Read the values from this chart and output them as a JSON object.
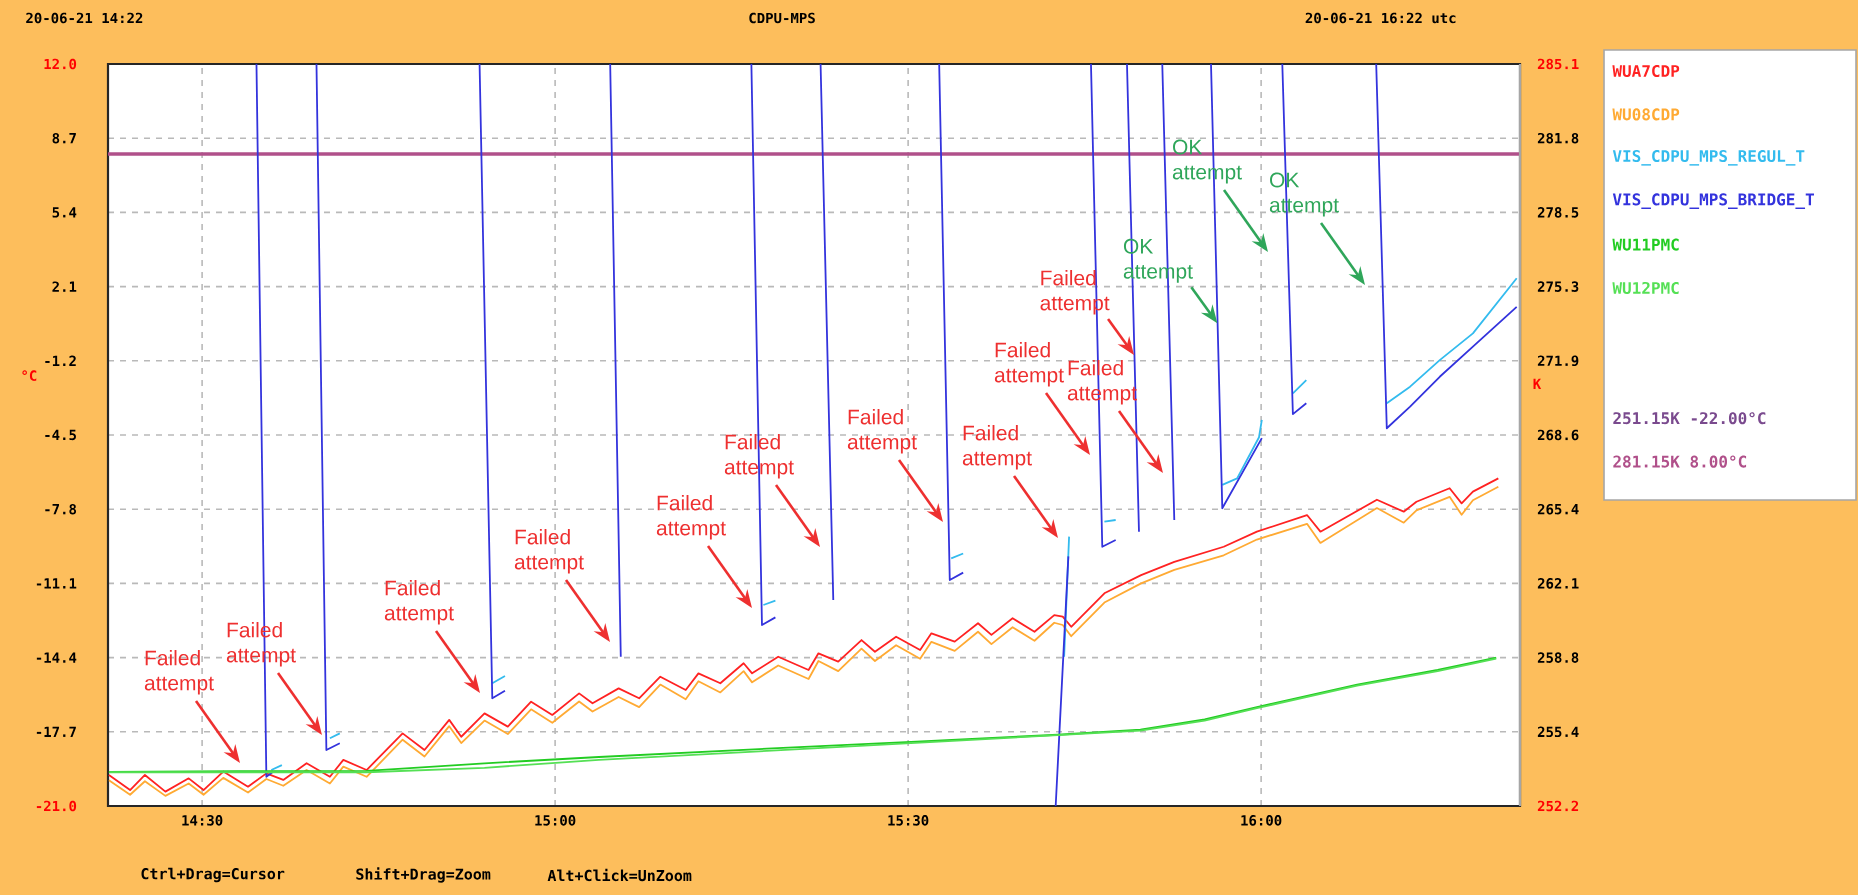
{
  "chart_data": {
    "type": "line",
    "title": "CDPU-MPS",
    "ylabel": "°C",
    "y2label": "K",
    "xlim": [
      14.3667,
      16.3667
    ],
    "xticks": [
      {
        "value": 14.5,
        "label": "14:30"
      },
      {
        "value": 15,
        "label": "15:00"
      },
      {
        "value": 15.5,
        "label": "15:30"
      },
      {
        "value": 16,
        "label": "16:00"
      }
    ],
    "ylim": [
      -21,
      12
    ],
    "yticks": [
      {
        "value": 12,
        "label": "12.0"
      },
      8.7,
      5.4,
      2.1,
      -1.2,
      -4.5,
      -7.8,
      -11.1,
      -14.4,
      -17.7,
      {
        "value": -21,
        "label": "-21.0"
      }
    ],
    "y2lim": [
      252.15,
      285.15
    ],
    "y2ticks": [
      {
        "value": 285.15,
        "label": "285.1"
      },
      {
        "value": 281.85,
        "label": "281.8"
      },
      {
        "value": 278.55,
        "label": "278.5"
      },
      {
        "value": 275.25,
        "label": "275.3"
      },
      {
        "value": 271.95,
        "label": "271.9"
      },
      {
        "value": 268.65,
        "label": "268.6"
      },
      {
        "value": 265.35,
        "label": "265.4"
      },
      {
        "value": 262.05,
        "label": "262.1"
      },
      {
        "value": 258.75,
        "label": "258.8"
      },
      {
        "value": 255.45,
        "label": "255.4"
      },
      {
        "value": 252.15,
        "label": "252.2"
      }
    ],
    "grid": true,
    "legend": "top right",
    "marker": "none",
    "line_style": "solid",
    "series": [
      {
        "name": "WUA7CDP",
        "color": "#ff2222",
        "x": [
          14.368,
          14.398,
          14.419,
          14.448,
          14.481,
          14.502,
          14.53,
          14.565,
          14.591,
          14.615,
          14.648,
          14.681,
          14.7,
          14.733,
          14.784,
          14.815,
          14.85,
          14.867,
          14.9,
          14.933,
          14.966,
          14.996,
          15.034,
          15.053,
          15.09,
          15.119,
          15.149,
          15.185,
          15.203,
          15.234,
          15.267,
          15.279,
          15.316,
          15.359,
          15.373,
          15.401,
          15.434,
          15.453,
          15.483,
          15.517,
          15.533,
          15.566,
          15.599,
          15.618,
          15.648,
          15.679,
          15.707,
          15.719,
          15.731,
          15.778,
          15.83,
          15.877,
          15.947,
          15.994,
          16.065,
          16.084,
          16.164,
          16.202,
          16.22,
          16.267,
          16.284,
          16.3,
          16.336
        ],
        "values": [
          -19.62,
          -20.29,
          -19.62,
          -20.36,
          -19.77,
          -20.29,
          -19.47,
          -20.14,
          -19.55,
          -19.84,
          -19.1,
          -19.7,
          -18.95,
          -19.4,
          -17.77,
          -18.51,
          -17.17,
          -17.92,
          -16.88,
          -17.47,
          -16.36,
          -16.95,
          -15.99,
          -16.43,
          -15.77,
          -16.21,
          -15.25,
          -15.84,
          -15.1,
          -15.54,
          -14.65,
          -15.1,
          -14.36,
          -14.95,
          -14.21,
          -14.58,
          -13.62,
          -14.14,
          -13.47,
          -14.06,
          -13.32,
          -13.69,
          -12.87,
          -13.39,
          -12.65,
          -13.25,
          -12.51,
          -12.58,
          -13.03,
          -11.54,
          -10.73,
          -10.14,
          -9.47,
          -8.8,
          -8.06,
          -8.8,
          -7.38,
          -7.91,
          -7.47,
          -6.87,
          -7.54,
          -7.02,
          -6.43
        ]
      },
      {
        "name": "WU08CDP",
        "color": "#ffaa33",
        "x": [
          14.368,
          14.398,
          14.419,
          14.448,
          14.481,
          14.502,
          14.53,
          14.565,
          14.591,
          14.615,
          14.648,
          14.681,
          14.7,
          14.733,
          14.784,
          14.815,
          14.85,
          14.867,
          14.9,
          14.933,
          14.966,
          14.996,
          15.034,
          15.053,
          15.09,
          15.119,
          15.149,
          15.185,
          15.203,
          15.234,
          15.267,
          15.279,
          15.316,
          15.359,
          15.373,
          15.401,
          15.434,
          15.453,
          15.483,
          15.517,
          15.533,
          15.566,
          15.599,
          15.618,
          15.648,
          15.679,
          15.707,
          15.719,
          15.731,
          15.778,
          15.83,
          15.877,
          15.947,
          15.994,
          16.065,
          16.084,
          16.164,
          16.202,
          16.22,
          16.267,
          16.284,
          16.3,
          16.336
        ],
        "values": [
          -19.85,
          -20.5,
          -19.9,
          -20.55,
          -20.0,
          -20.5,
          -19.75,
          -20.4,
          -19.8,
          -20.1,
          -19.4,
          -20.0,
          -19.25,
          -19.7,
          -18.05,
          -18.8,
          -17.45,
          -18.2,
          -17.2,
          -17.8,
          -16.7,
          -17.3,
          -16.35,
          -16.8,
          -16.15,
          -16.6,
          -15.6,
          -16.25,
          -15.45,
          -15.95,
          -15.0,
          -15.5,
          -14.75,
          -15.35,
          -14.55,
          -15.0,
          -14.0,
          -14.55,
          -13.85,
          -14.45,
          -13.7,
          -14.1,
          -13.25,
          -13.8,
          -13.05,
          -13.65,
          -12.85,
          -12.95,
          -13.45,
          -11.95,
          -11.1,
          -10.5,
          -9.85,
          -9.15,
          -8.45,
          -9.3,
          -7.75,
          -8.4,
          -7.85,
          -7.25,
          -8.05,
          -7.4,
          -6.8
        ]
      },
      {
        "name": "VIS_CDPU_MPS_REGUL_T",
        "color": "#33bbee",
        "x": [
          14.598,
          14.613,
          null,
          14.681,
          14.695,
          null,
          14.911,
          14.929,
          null,
          15.295,
          15.312,
          null,
          15.561,
          15.578,
          null,
          15.721,
          15.728,
          null,
          15.778,
          15.794,
          null,
          15.945,
          15.966,
          15.997,
          16.001,
          null,
          16.045,
          16.064,
          null,
          16.178,
          16.211,
          16.253,
          16.3,
          16.362
        ],
        "values": [
          -19.4,
          -19.18,
          null,
          -17.99,
          -17.77,
          null,
          -15.54,
          -15.22,
          null,
          -12.06,
          -11.87,
          null,
          -9.99,
          -9.77,
          null,
          -14.36,
          -9.02,
          null,
          -8.35,
          -8.28,
          null,
          -6.72,
          -6.43,
          -4.6,
          -3.83,
          null,
          -2.65,
          -2.06,
          null,
          -3.09,
          -2.35,
          -1.17,
          0.02,
          2.47
        ]
      },
      {
        "name": "VIS_CDPU_MPS_BRIDGE_T",
        "color": "#3333dd",
        "x": [
          14.577,
          14.591,
          14.601,
          null,
          14.662,
          14.676,
          14.695,
          null,
          14.893,
          14.911,
          14.929,
          null,
          15.078,
          15.093,
          null,
          15.278,
          15.293,
          15.312,
          null,
          15.376,
          15.394,
          null,
          15.544,
          15.559,
          15.578,
          null,
          15.709,
          15.727,
          null,
          15.759,
          15.775,
          15.794,
          null,
          15.81,
          15.827,
          null,
          15.86,
          15.877,
          null,
          15.929,
          15.945,
          16.001,
          null,
          16.03,
          16.045,
          16.064,
          null,
          16.163,
          16.178,
          16.211,
          16.253,
          16.3,
          16.362
        ],
        "values": [
          12,
          -19.7,
          -19.47,
          null,
          12,
          -18.51,
          -18.21,
          null,
          12,
          -16.21,
          -15.87,
          null,
          12,
          -14.36,
          null,
          12,
          -12.95,
          -12.61,
          null,
          12,
          -11.84,
          null,
          12,
          -10.95,
          -10.62,
          null,
          -21,
          -9.9,
          null,
          12,
          -9.47,
          -9.17,
          null,
          12,
          -8.8,
          null,
          12,
          -8.28,
          null,
          12,
          -7.76,
          -4.64,
          null,
          12,
          -3.57,
          -3.09,
          null,
          12,
          -4.2,
          -3.24,
          -1.91,
          -0.57,
          1.2
        ]
      },
      {
        "name": "WU11PMC",
        "color": "#22cc22",
        "x": [
          14.368,
          14.55,
          14.733,
          14.9,
          15.062,
          15.3,
          15.504,
          15.712,
          15.829,
          15.92,
          15.994,
          16.136,
          16.25,
          16.333
        ],
        "values": [
          -19.48,
          -19.45,
          -19.44,
          -19.1,
          -18.82,
          -18.45,
          -18.15,
          -17.83,
          -17.6,
          -17.15,
          -16.6,
          -15.6,
          -14.95,
          -14.4
        ]
      },
      {
        "name": "WU12PMC",
        "color": "#55e055",
        "x": [
          14.368,
          14.55,
          14.733,
          14.9,
          15.062,
          15.3,
          15.504,
          15.712,
          15.829,
          15.92,
          15.994,
          16.136,
          16.25,
          16.333
        ],
        "values": [
          -19.5,
          -19.5,
          -19.5,
          -19.3,
          -18.95,
          -18.55,
          -18.2,
          -17.85,
          -17.65,
          -17.2,
          -16.65,
          -15.65,
          -15.0,
          -14.45
        ]
      }
    ],
    "ref_lines": [
      {
        "axis": "y",
        "value": 8,
        "label": "281.15K 8.00°C",
        "color": "#b0508a"
      }
    ],
    "annotations": [
      "20-06-21 14:22",
      "20-06-21 16:22 utc",
      "Ctrl+Drag=Cursor",
      "Shift+Drag=Zoom",
      "Alt+Click=UnZoom",
      "251.15K -22.00°C",
      "Failed attempt",
      "Failed attempt",
      "Failed attempt",
      "Failed attempt",
      "Failed attempt",
      "Failed attempt",
      "Failed attempt",
      "Failed attempt",
      "Failed attempt",
      {
        "text": "Failed attempt",
        "x": 15.82,
        "y": -0.94
      },
      "Failed attempt",
      "OK attempt",
      {
        "text": "OK attempt",
        "x": 15.938,
        "y": 0.47
      },
      "OK attempt"
    ]
  }
}
